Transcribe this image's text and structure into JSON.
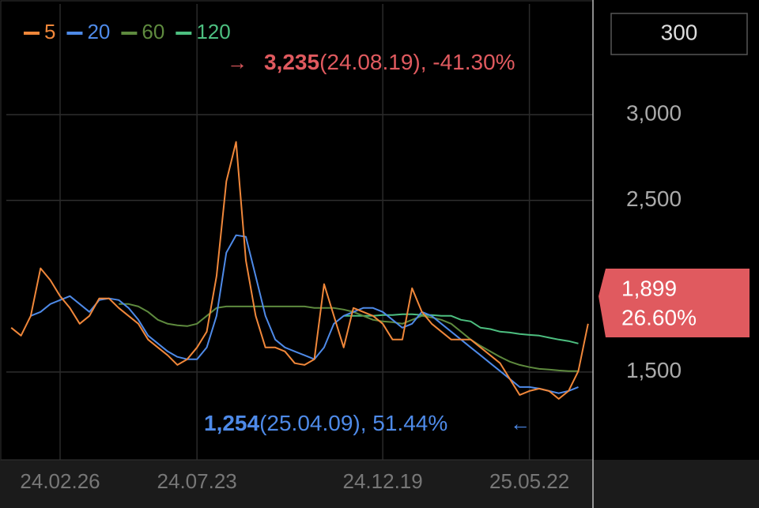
{
  "chart_data": {
    "type": "line",
    "categories": [
      null,
      null,
      null,
      null,
      null,
      "24.02.26",
      null,
      null,
      null,
      null,
      null,
      null,
      null,
      null,
      null,
      null,
      null,
      null,
      null,
      "24.07.23",
      null,
      null,
      null,
      null,
      null,
      null,
      null,
      null,
      null,
      null,
      null,
      null,
      null,
      null,
      null,
      null,
      null,
      null,
      "24.12.19",
      null,
      null,
      null,
      null,
      null,
      null,
      null,
      null,
      null,
      null,
      null,
      null,
      null,
      null,
      "25.05.22",
      null,
      null,
      null,
      null,
      null,
      null
    ],
    "series": [
      {
        "name": "5",
        "color": "#f0873a",
        "values": [
          1758,
          1712,
          1827,
          2104,
          2035,
          1942,
          1873,
          1781,
          1827,
          1929,
          1929,
          1873,
          1827,
          1781,
          1689,
          1643,
          1597,
          1541,
          1574,
          1643,
          1735,
          2058,
          2611,
          2841,
          2150,
          1827,
          1643,
          1643,
          1620,
          1551,
          1541,
          1574,
          2012,
          1827,
          1643,
          1873,
          1850,
          1827,
          1781,
          1689,
          1689,
          1988,
          1850,
          1781,
          1735,
          1689,
          1689,
          1689,
          1643,
          1597,
          1551,
          1459,
          1366,
          1389,
          1403,
          1389,
          1343,
          1389,
          1505,
          1781
        ]
      },
      {
        "name": "20",
        "color": "#4e8ae8",
        "values": [
          null,
          null,
          1827,
          1850,
          1896,
          1919,
          1942,
          1896,
          1850,
          1919,
          1929,
          1919,
          1873,
          1804,
          1712,
          1666,
          1620,
          1588,
          1574,
          1574,
          1643,
          1827,
          2196,
          2297,
          2288,
          2058,
          1827,
          1689,
          1643,
          1620,
          1597,
          1574,
          1643,
          1781,
          1827,
          1850,
          1873,
          1873,
          1850,
          1804,
          1758,
          1781,
          1850,
          1827,
          1781,
          1735,
          1689,
          1643,
          1597,
          1551,
          1505,
          1459,
          1412,
          1412,
          1403,
          1389,
          1376,
          1389,
          1412,
          null
        ]
      },
      {
        "name": "60",
        "color": "#5e8a3e",
        "values": [
          null,
          null,
          null,
          null,
          null,
          null,
          null,
          null,
          null,
          null,
          null,
          1896,
          1896,
          1882,
          1850,
          1804,
          1781,
          1772,
          1767,
          1781,
          1827,
          1873,
          1882,
          1882,
          1882,
          1882,
          1882,
          1882,
          1882,
          1882,
          1882,
          1873,
          1873,
          1873,
          1864,
          1850,
          1827,
          1804,
          1795,
          1790,
          1781,
          1804,
          1827,
          1818,
          1804,
          1781,
          1735,
          1689,
          1652,
          1620,
          1588,
          1560,
          1541,
          1528,
          1518,
          1514,
          1509,
          1505,
          1505,
          null
        ]
      },
      {
        "name": "120",
        "color": "#4dbf80",
        "values": [
          null,
          null,
          null,
          null,
          null,
          null,
          null,
          null,
          null,
          null,
          null,
          null,
          null,
          null,
          null,
          null,
          null,
          null,
          null,
          null,
          null,
          null,
          null,
          null,
          null,
          null,
          null,
          null,
          null,
          null,
          null,
          null,
          null,
          null,
          1827,
          1827,
          1827,
          1827,
          1832,
          1832,
          1836,
          1836,
          1832,
          1832,
          1827,
          1827,
          1804,
          1795,
          1758,
          1750,
          1735,
          1730,
          1721,
          1716,
          1712,
          1700,
          1689,
          1680,
          1666,
          null
        ]
      }
    ],
    "ylim": [
      988,
      3645
    ],
    "yticks": [
      {
        "value": 3000,
        "label": "3,000"
      },
      {
        "value": 2500,
        "label": "2,500"
      },
      {
        "value": 1500,
        "label": "1,500"
      }
    ],
    "grid": true,
    "period_button": "300",
    "high_annotation": {
      "price": "3,235",
      "detail": "(24.08.19), -41.30%",
      "arrow": "→"
    },
    "low_annotation": {
      "price": "1,254",
      "detail": "(25.04.09), 51.44%",
      "arrow": "←"
    },
    "current_price": {
      "price": "1,899",
      "change": "26.60%"
    }
  }
}
